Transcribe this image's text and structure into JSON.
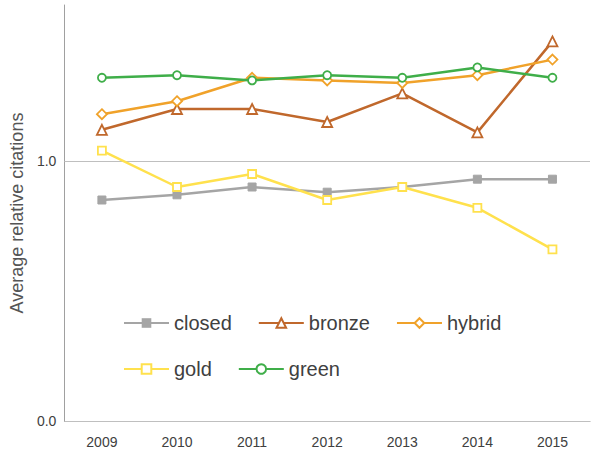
{
  "chart_data": {
    "type": "line",
    "y_label": "Average relative citations",
    "categories": [
      "2009",
      "2010",
      "2011",
      "2012",
      "2013",
      "2014",
      "2015"
    ],
    "series": [
      {
        "name": "closed",
        "color": "#a5a5a5",
        "marker": "square",
        "values": [
          0.85,
          0.87,
          0.9,
          0.88,
          0.9,
          0.93,
          0.93
        ]
      },
      {
        "name": "bronze",
        "color": "#c0682c",
        "marker": "open_triangle",
        "values": [
          1.12,
          1.2,
          1.2,
          1.15,
          1.26,
          1.11,
          1.46
        ]
      },
      {
        "name": "hybrid",
        "color": "#f0a22a",
        "marker": "open_diamond",
        "values": [
          1.18,
          1.23,
          1.32,
          1.31,
          1.3,
          1.33,
          1.39
        ]
      },
      {
        "name": "gold",
        "color": "#ffe14d",
        "marker": "open_square",
        "values": [
          1.04,
          0.9,
          0.95,
          0.85,
          0.9,
          0.82,
          0.66
        ]
      },
      {
        "name": "green",
        "color": "#3fae49",
        "marker": "open_circle",
        "values": [
          1.32,
          1.33,
          1.31,
          1.33,
          1.32,
          1.36,
          1.32
        ]
      }
    ],
    "ylim": [
      0,
      1.6
    ],
    "yticks": [
      {
        "value": 0,
        "label": "0.0"
      },
      {
        "value": 1,
        "label": "1.0"
      }
    ],
    "grid": true,
    "legend": "bottom-left"
  }
}
